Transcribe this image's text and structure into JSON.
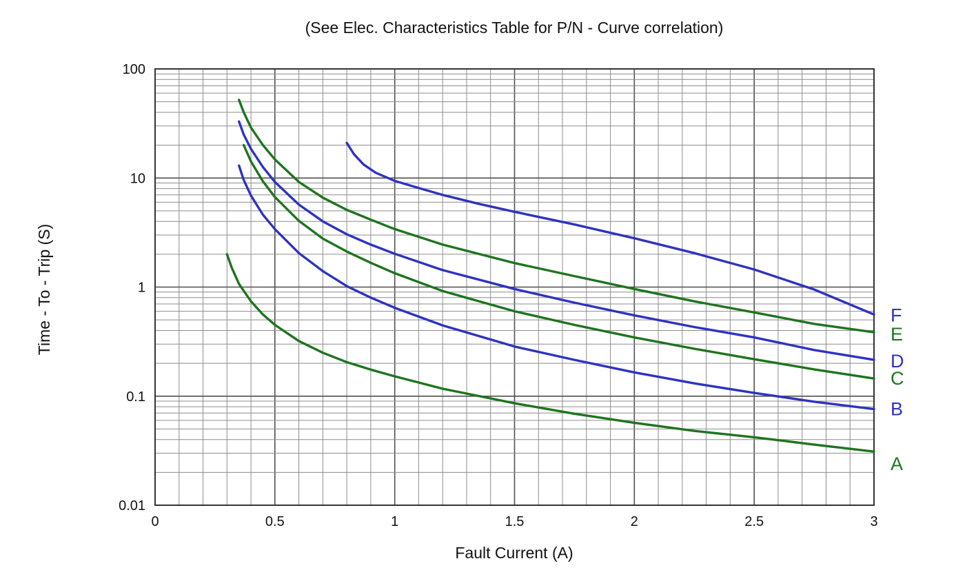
{
  "chart_data": {
    "type": "line",
    "title": "(See Elec. Characteristics Table for P/N - Curve correlation)",
    "xlabel": "Fault Current (A)",
    "ylabel": "Time - To - Trip (S)",
    "x_axis": {
      "scale": "linear",
      "min": 0,
      "max": 3,
      "ticks": [
        0,
        0.5,
        1,
        1.5,
        2,
        2.5,
        3
      ],
      "tick_labels": [
        "0",
        "0.5",
        "1",
        "1.5",
        "2",
        "2.5",
        "3"
      ],
      "minor_step": 0.1
    },
    "y_axis": {
      "scale": "log",
      "min": 0.01,
      "max": 100,
      "ticks": [
        100,
        10,
        1,
        0.1,
        0.01
      ],
      "tick_labels": [
        "100",
        "10",
        "1",
        "0.1",
        "0.01"
      ]
    },
    "grid": true,
    "legend_position": "right-of-curves",
    "colors": {
      "green": "#1e741e",
      "blue": "#2d33c0",
      "grid_minor": "#8c8c8c",
      "grid_major": "#4f4f4f",
      "border": "#333333"
    },
    "series": [
      {
        "name": "A",
        "color": "#1e741e",
        "label_y": 0.024,
        "points": [
          [
            0.3,
            2.0
          ],
          [
            0.32,
            1.5
          ],
          [
            0.35,
            1.07
          ],
          [
            0.4,
            0.74
          ],
          [
            0.45,
            0.56
          ],
          [
            0.5,
            0.45
          ],
          [
            0.6,
            0.32
          ],
          [
            0.7,
            0.25
          ],
          [
            0.8,
            0.205
          ],
          [
            0.9,
            0.175
          ],
          [
            1.0,
            0.152
          ],
          [
            1.2,
            0.117
          ],
          [
            1.5,
            0.086
          ],
          [
            1.75,
            0.069
          ],
          [
            2.0,
            0.057
          ],
          [
            2.25,
            0.048
          ],
          [
            2.5,
            0.042
          ],
          [
            2.75,
            0.036
          ],
          [
            3.0,
            0.031
          ]
        ]
      },
      {
        "name": "B",
        "color": "#2d33c0",
        "label_y": 0.076,
        "points": [
          [
            0.35,
            13
          ],
          [
            0.37,
            9.6
          ],
          [
            0.4,
            6.9
          ],
          [
            0.45,
            4.6
          ],
          [
            0.5,
            3.4
          ],
          [
            0.6,
            2.05
          ],
          [
            0.7,
            1.4
          ],
          [
            0.8,
            1.02
          ],
          [
            0.9,
            0.8
          ],
          [
            1.0,
            0.645
          ],
          [
            1.2,
            0.445
          ],
          [
            1.5,
            0.285
          ],
          [
            1.75,
            0.215
          ],
          [
            2.0,
            0.165
          ],
          [
            2.25,
            0.131
          ],
          [
            2.5,
            0.107
          ],
          [
            2.75,
            0.089
          ],
          [
            3.0,
            0.076
          ]
        ]
      },
      {
        "name": "C",
        "color": "#1e741e",
        "label_y": 0.145,
        "points": [
          [
            0.37,
            20
          ],
          [
            0.4,
            14.2
          ],
          [
            0.45,
            9.3
          ],
          [
            0.5,
            6.7
          ],
          [
            0.6,
            4.05
          ],
          [
            0.7,
            2.78
          ],
          [
            0.8,
            2.12
          ],
          [
            0.9,
            1.67
          ],
          [
            1.0,
            1.34
          ],
          [
            1.2,
            0.92
          ],
          [
            1.5,
            0.6
          ],
          [
            1.75,
            0.45
          ],
          [
            2.0,
            0.345
          ],
          [
            2.25,
            0.272
          ],
          [
            2.5,
            0.218
          ],
          [
            2.75,
            0.176
          ],
          [
            3.0,
            0.145
          ]
        ]
      },
      {
        "name": "D",
        "color": "#2d33c0",
        "label_y": 0.21,
        "points": [
          [
            0.35,
            33
          ],
          [
            0.37,
            25
          ],
          [
            0.4,
            18.5
          ],
          [
            0.45,
            12.6
          ],
          [
            0.5,
            9.2
          ],
          [
            0.6,
            5.7
          ],
          [
            0.7,
            4.0
          ],
          [
            0.8,
            3.05
          ],
          [
            0.9,
            2.45
          ],
          [
            1.0,
            2.02
          ],
          [
            1.2,
            1.43
          ],
          [
            1.5,
            0.96
          ],
          [
            1.75,
            0.72
          ],
          [
            2.0,
            0.55
          ],
          [
            2.25,
            0.43
          ],
          [
            2.5,
            0.345
          ],
          [
            2.75,
            0.265
          ],
          [
            3.0,
            0.215
          ]
        ]
      },
      {
        "name": "E",
        "color": "#1e741e",
        "label_y": 0.37,
        "points": [
          [
            0.35,
            52
          ],
          [
            0.37,
            40
          ],
          [
            0.4,
            29
          ],
          [
            0.45,
            20
          ],
          [
            0.5,
            14.8
          ],
          [
            0.6,
            9.2
          ],
          [
            0.7,
            6.6
          ],
          [
            0.8,
            5.1
          ],
          [
            0.9,
            4.15
          ],
          [
            1.0,
            3.4
          ],
          [
            1.2,
            2.45
          ],
          [
            1.5,
            1.66
          ],
          [
            1.75,
            1.26
          ],
          [
            2.0,
            0.96
          ],
          [
            2.25,
            0.74
          ],
          [
            2.5,
            0.585
          ],
          [
            2.75,
            0.46
          ],
          [
            3.0,
            0.385
          ]
        ]
      },
      {
        "name": "F",
        "color": "#2d33c0",
        "label_y": 0.55,
        "points": [
          [
            0.8,
            21
          ],
          [
            0.83,
            16.5
          ],
          [
            0.87,
            13.3
          ],
          [
            0.92,
            11.2
          ],
          [
            1.0,
            9.4
          ],
          [
            1.1,
            8.1
          ],
          [
            1.2,
            7.0
          ],
          [
            1.35,
            5.8
          ],
          [
            1.5,
            4.9
          ],
          [
            1.75,
            3.75
          ],
          [
            2.0,
            2.8
          ],
          [
            2.25,
            2.05
          ],
          [
            2.5,
            1.45
          ],
          [
            2.75,
            0.95
          ],
          [
            3.0,
            0.56
          ]
        ]
      }
    ]
  }
}
